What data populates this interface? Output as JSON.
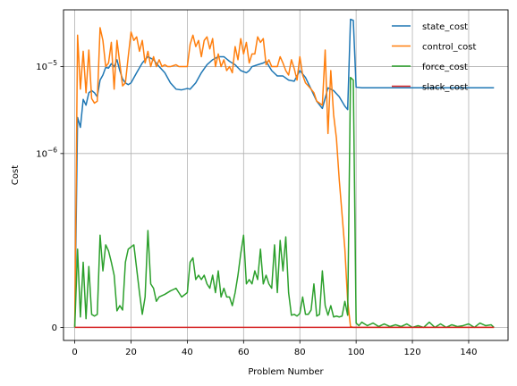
{
  "chart_data": {
    "type": "line",
    "title": "",
    "xlabel": "Problem Number",
    "ylabel": "Cost",
    "xlim": [
      -4,
      154
    ],
    "yscale": "symlog",
    "linthresh": 1e-07,
    "ylim": [
      -1.5e-08,
      4.5e-05
    ],
    "grid": true,
    "legend_position": "top-right",
    "xticks": [
      {
        "value": 0,
        "label": "0"
      },
      {
        "value": 20,
        "label": "20"
      },
      {
        "value": 40,
        "label": "40"
      },
      {
        "value": 60,
        "label": "60"
      },
      {
        "value": 80,
        "label": "80"
      },
      {
        "value": 100,
        "label": "100"
      },
      {
        "value": 120,
        "label": "120"
      },
      {
        "value": 140,
        "label": "140"
      }
    ],
    "yticks": [
      {
        "value": 0,
        "label": "0"
      },
      {
        "value": 1e-06,
        "label": "10^-6",
        "base": "10",
        "exp": "−6"
      },
      {
        "value": 1e-05,
        "label": "10^-5",
        "base": "10",
        "exp": "−5"
      }
    ],
    "series": [
      {
        "name": "state_cost",
        "color": "#1f77b4",
        "points": [
          [
            0,
            0
          ],
          [
            1,
            2.6e-06
          ],
          [
            2,
            2e-06
          ],
          [
            3,
            4.2e-06
          ],
          [
            4,
            3.6e-06
          ],
          [
            5,
            5e-06
          ],
          [
            6,
            5.3e-06
          ],
          [
            7,
            5e-06
          ],
          [
            8,
            4.5e-06
          ],
          [
            9,
            7e-06
          ],
          [
            10,
            8e-06
          ],
          [
            11,
            9.8e-06
          ],
          [
            12,
            9.6e-06
          ],
          [
            13,
            1.08e-05
          ],
          [
            14,
            1e-05
          ],
          [
            15,
            1.2e-05
          ],
          [
            16,
            9e-06
          ],
          [
            17,
            7.2e-06
          ],
          [
            18,
            6.5e-06
          ],
          [
            19,
            6.2e-06
          ],
          [
            20,
            6.5e-06
          ],
          [
            22,
            8.5e-06
          ],
          [
            24,
            1.1e-05
          ],
          [
            25,
            1.2e-05
          ],
          [
            26,
            1.3e-05
          ],
          [
            28,
            1.2e-05
          ],
          [
            30,
            1e-05
          ],
          [
            32,
            8.5e-06
          ],
          [
            34,
            6.5e-06
          ],
          [
            36,
            5.5e-06
          ],
          [
            38,
            5.4e-06
          ],
          [
            40,
            5.6e-06
          ],
          [
            41,
            5.5e-06
          ],
          [
            43,
            6.5e-06
          ],
          [
            45,
            8.5e-06
          ],
          [
            47,
            1.05e-05
          ],
          [
            49,
            1.2e-05
          ],
          [
            51,
            1.3e-05
          ],
          [
            53,
            1.3e-05
          ],
          [
            55,
            1.15e-05
          ],
          [
            57,
            1.05e-05
          ],
          [
            59,
            9e-06
          ],
          [
            61,
            8.5e-06
          ],
          [
            62,
            9e-06
          ],
          [
            63,
            1e-05
          ],
          [
            65,
            1.05e-05
          ],
          [
            67,
            1.1e-05
          ],
          [
            68,
            1.15e-05
          ],
          [
            70,
            9e-06
          ],
          [
            72,
            7.8e-06
          ],
          [
            74,
            7.8e-06
          ],
          [
            76,
            7e-06
          ],
          [
            78,
            6.8e-06
          ],
          [
            80,
            9e-06
          ],
          [
            82,
            7.5e-06
          ],
          [
            84,
            5.5e-06
          ],
          [
            86,
            4e-06
          ],
          [
            88,
            3.3e-06
          ],
          [
            90,
            5.7e-06
          ],
          [
            92,
            5.3e-06
          ],
          [
            94,
            4.5e-06
          ],
          [
            96,
            3.5e-06
          ],
          [
            97,
            3.2e-06
          ],
          [
            98,
            3.5e-05
          ],
          [
            99,
            3.4e-05
          ],
          [
            100,
            5.8e-06
          ],
          [
            102,
            5.7e-06
          ],
          [
            110,
            5.7e-06
          ],
          [
            120,
            5.7e-06
          ],
          [
            130,
            5.7e-06
          ],
          [
            140,
            5.7e-06
          ],
          [
            149,
            5.7e-06
          ]
        ]
      },
      {
        "name": "control_cost",
        "color": "#ff7f0e",
        "points": [
          [
            0,
            0
          ],
          [
            1,
            2.3e-05
          ],
          [
            2,
            5.5e-06
          ],
          [
            3,
            1.5e-05
          ],
          [
            4,
            5e-06
          ],
          [
            5,
            1.55e-05
          ],
          [
            6,
            4.3e-06
          ],
          [
            7,
            3.8e-06
          ],
          [
            8,
            4e-06
          ],
          [
            9,
            2.8e-05
          ],
          [
            10,
            2e-05
          ],
          [
            11,
            1e-05
          ],
          [
            12,
            1.1e-05
          ],
          [
            13,
            1.9e-05
          ],
          [
            14,
            5.5e-06
          ],
          [
            15,
            2e-05
          ],
          [
            16,
            1.1e-05
          ],
          [
            17,
            6e-06
          ],
          [
            18,
            6.5e-06
          ],
          [
            19,
            1.3e-05
          ],
          [
            20,
            2.5e-05
          ],
          [
            21,
            2e-05
          ],
          [
            22,
            2.2e-05
          ],
          [
            23,
            1.5e-05
          ],
          [
            24,
            2e-05
          ],
          [
            25,
            1.1e-05
          ],
          [
            26,
            1.5e-05
          ],
          [
            27,
            1e-05
          ],
          [
            28,
            1.3e-05
          ],
          [
            29,
            1e-05
          ],
          [
            30,
            1.2e-05
          ],
          [
            31,
            1e-05
          ],
          [
            32,
            1.05e-05
          ],
          [
            33,
            1e-05
          ],
          [
            34,
            1e-05
          ],
          [
            36,
            1.05e-05
          ],
          [
            37,
            1e-05
          ],
          [
            38,
            1e-05
          ],
          [
            40,
            1e-05
          ],
          [
            41,
            1.8e-05
          ],
          [
            42,
            2.3e-05
          ],
          [
            43,
            1.7e-05
          ],
          [
            44,
            2e-05
          ],
          [
            45,
            1.3e-05
          ],
          [
            46,
            2e-05
          ],
          [
            47,
            2.2e-05
          ],
          [
            48,
            1.6e-05
          ],
          [
            49,
            2.1e-05
          ],
          [
            50,
            1e-05
          ],
          [
            51,
            1.4e-05
          ],
          [
            52,
            1e-05
          ],
          [
            53,
            1.2e-05
          ],
          [
            54,
            9e-06
          ],
          [
            55,
            1e-05
          ],
          [
            56,
            8.5e-06
          ],
          [
            57,
            1.7e-05
          ],
          [
            58,
            1.2e-05
          ],
          [
            59,
            2.1e-05
          ],
          [
            60,
            1.4e-05
          ],
          [
            61,
            1.9e-05
          ],
          [
            62,
            1.1e-05
          ],
          [
            63,
            1.4e-05
          ],
          [
            64,
            1.4e-05
          ],
          [
            65,
            2.2e-05
          ],
          [
            66,
            1.9e-05
          ],
          [
            67,
            2.1e-05
          ],
          [
            68,
            1.05e-05
          ],
          [
            69,
            1.2e-05
          ],
          [
            70,
            1e-05
          ],
          [
            71,
            1e-05
          ],
          [
            72,
            1e-05
          ],
          [
            73,
            1.3e-05
          ],
          [
            74,
            1.1e-05
          ],
          [
            75,
            9e-06
          ],
          [
            76,
            8e-06
          ],
          [
            77,
            1.2e-05
          ],
          [
            78,
            9.5e-06
          ],
          [
            79,
            7e-06
          ],
          [
            80,
            1.3e-05
          ],
          [
            81,
            8e-06
          ],
          [
            82,
            6.5e-06
          ],
          [
            83,
            6e-06
          ],
          [
            84,
            5.5e-06
          ],
          [
            85,
            5e-06
          ],
          [
            86,
            4e-06
          ],
          [
            87,
            3.8e-06
          ],
          [
            88,
            3.6e-06
          ],
          [
            89,
            1.55e-05
          ],
          [
            90,
            1.7e-06
          ],
          [
            91,
            9e-06
          ],
          [
            92,
            2.8e-06
          ],
          [
            93,
            1.5e-06
          ],
          [
            94,
            5e-07
          ],
          [
            95,
            2e-07
          ],
          [
            96,
            9e-08
          ],
          [
            97,
            3e-08
          ],
          [
            98,
            1e-09
          ],
          [
            99,
            0
          ],
          [
            100,
            0
          ],
          [
            149,
            0
          ]
        ]
      },
      {
        "name": "force_cost",
        "color": "#2ca02c",
        "points": [
          [
            0,
            0
          ],
          [
            1,
            9e-08
          ],
          [
            2,
            1.2e-08
          ],
          [
            3,
            7.5e-08
          ],
          [
            4,
            1e-08
          ],
          [
            5,
            7e-08
          ],
          [
            6,
            1.5e-08
          ],
          [
            7,
            1.3e-08
          ],
          [
            8,
            1.5e-08
          ],
          [
            9,
            1.15e-07
          ],
          [
            10,
            6.5e-08
          ],
          [
            11,
            9.5e-08
          ],
          [
            12,
            8.8e-08
          ],
          [
            13,
            7.5e-08
          ],
          [
            14,
            6e-08
          ],
          [
            15,
            1.9e-08
          ],
          [
            16,
            2.5e-08
          ],
          [
            17,
            2e-08
          ],
          [
            18,
            7.5e-08
          ],
          [
            19,
            9e-08
          ],
          [
            21,
            9.5e-08
          ],
          [
            23,
            4e-08
          ],
          [
            24,
            1.5e-08
          ],
          [
            25,
            3.5e-08
          ],
          [
            26,
            1.3e-07
          ],
          [
            27,
            5e-08
          ],
          [
            28,
            4.5e-08
          ],
          [
            29,
            3e-08
          ],
          [
            30,
            3.5e-08
          ],
          [
            32,
            3.8e-08
          ],
          [
            34,
            4.2e-08
          ],
          [
            36,
            4.5e-08
          ],
          [
            38,
            3.5e-08
          ],
          [
            40,
            4e-08
          ],
          [
            41,
            7.5e-08
          ],
          [
            42,
            8e-08
          ],
          [
            43,
            5.5e-08
          ],
          [
            44,
            6e-08
          ],
          [
            45,
            5.5e-08
          ],
          [
            46,
            6e-08
          ],
          [
            47,
            5e-08
          ],
          [
            48,
            4.5e-08
          ],
          [
            49,
            6e-08
          ],
          [
            50,
            4e-08
          ],
          [
            51,
            6.5e-08
          ],
          [
            52,
            3.5e-08
          ],
          [
            53,
            4.5e-08
          ],
          [
            54,
            3.5e-08
          ],
          [
            55,
            3.5e-08
          ],
          [
            56,
            2.5e-08
          ],
          [
            57,
            4e-08
          ],
          [
            58,
            6e-08
          ],
          [
            59,
            8.5e-08
          ],
          [
            60,
            1.15e-07
          ],
          [
            61,
            5e-08
          ],
          [
            62,
            5.5e-08
          ],
          [
            63,
            5e-08
          ],
          [
            64,
            6.5e-08
          ],
          [
            65,
            5.5e-08
          ],
          [
            66,
            9e-08
          ],
          [
            67,
            5e-08
          ],
          [
            68,
            6e-08
          ],
          [
            69,
            5e-08
          ],
          [
            70,
            4.5e-08
          ],
          [
            71,
            9.5e-08
          ],
          [
            72,
            4e-08
          ],
          [
            73,
            1e-07
          ],
          [
            74,
            6.5e-08
          ],
          [
            75,
            1.1e-07
          ],
          [
            76,
            4e-08
          ],
          [
            77,
            1.4e-08
          ],
          [
            78,
            1.5e-08
          ],
          [
            79,
            1.3e-08
          ],
          [
            80,
            1.6e-08
          ],
          [
            81,
            3.5e-08
          ],
          [
            82,
            1.5e-08
          ],
          [
            83,
            1.5e-08
          ],
          [
            84,
            2e-08
          ],
          [
            85,
            5e-08
          ],
          [
            86,
            1.3e-08
          ],
          [
            87,
            1.5e-08
          ],
          [
            88,
            6.5e-08
          ],
          [
            89,
            2.5e-08
          ],
          [
            90,
            1.4e-08
          ],
          [
            91,
            2.5e-08
          ],
          [
            92,
            1.2e-08
          ],
          [
            93,
            1.3e-08
          ],
          [
            94,
            1.2e-08
          ],
          [
            95,
            1.3e-08
          ],
          [
            96,
            3e-08
          ],
          [
            97,
            1.4e-08
          ],
          [
            98,
            7.5e-06
          ],
          [
            99,
            7e-06
          ],
          [
            100,
            5e-09
          ],
          [
            101,
            2e-09
          ],
          [
            102,
            6e-09
          ],
          [
            104,
            2e-09
          ],
          [
            106,
            5e-09
          ],
          [
            108,
            1e-09
          ],
          [
            110,
            4e-09
          ],
          [
            112,
            1e-09
          ],
          [
            114,
            3e-09
          ],
          [
            116,
            1e-09
          ],
          [
            118,
            4e-09
          ],
          [
            120,
            0
          ],
          [
            122,
            2e-09
          ],
          [
            124,
            0
          ],
          [
            126,
            6e-09
          ],
          [
            128,
            0
          ],
          [
            130,
            4e-09
          ],
          [
            132,
            0
          ],
          [
            134,
            3e-09
          ],
          [
            136,
            1e-09
          ],
          [
            138,
            2e-09
          ],
          [
            140,
            4e-09
          ],
          [
            142,
            0
          ],
          [
            144,
            5e-09
          ],
          [
            146,
            2e-09
          ],
          [
            148,
            3e-09
          ],
          [
            149,
            0
          ]
        ]
      },
      {
        "name": "slack_cost",
        "color": "#d62728",
        "points": [
          [
            0,
            0
          ],
          [
            149,
            0
          ]
        ]
      }
    ]
  }
}
